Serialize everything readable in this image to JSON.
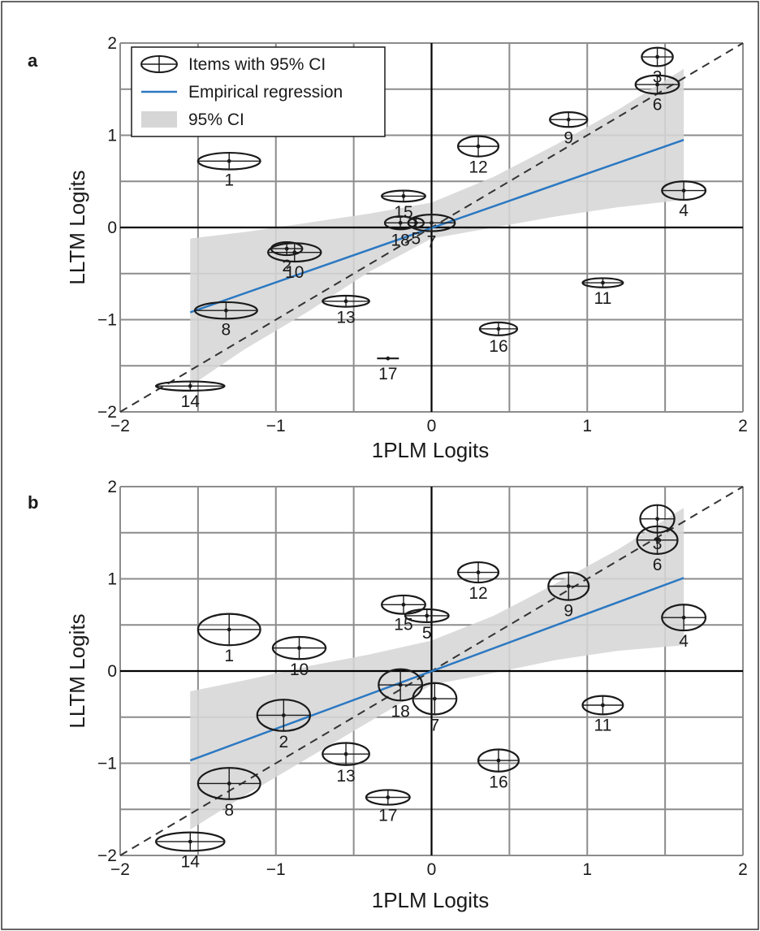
{
  "figure": {
    "border_color": "#333333",
    "colors": {
      "grid": "#8c8c8c",
      "axis": "#000000",
      "identity_line": "#333333",
      "regression": "#2b78c2",
      "ci_band": "#d6d6d6",
      "ellipse": "#1a1a1a"
    }
  },
  "chart_data": [
    {
      "panel_label": "a",
      "type": "scatter",
      "title": "",
      "xlabel": "1PLM Logits",
      "ylabel": "LLTM Logits",
      "xlim": [
        -2,
        2
      ],
      "ylim": [
        -2,
        2
      ],
      "xticks": [
        "−2",
        "−1",
        "0",
        "1",
        "2"
      ],
      "yticks": [
        "−2",
        "−1",
        "0",
        "1",
        "2"
      ],
      "grid": true,
      "minor_gridlines": 0.5,
      "legend": {
        "placement": "top-left",
        "entries": [
          "Items with 95% CI",
          "Empirical regression",
          "95% CI"
        ]
      },
      "identity_line": true,
      "regression": {
        "x": [
          -1.55,
          1.62
        ],
        "y": [
          -0.92,
          0.95
        ]
      },
      "ci_band": {
        "x": [
          -1.55,
          -1.2,
          -0.8,
          -0.4,
          0.0,
          0.4,
          0.8,
          1.2,
          1.62
        ],
        "upper": [
          -0.12,
          -0.05,
          0.05,
          0.15,
          0.27,
          0.55,
          0.9,
          1.28,
          1.72
        ],
        "lower": [
          -1.72,
          -1.32,
          -0.92,
          -0.48,
          -0.12,
          0.0,
          0.12,
          0.22,
          0.3
        ]
      },
      "items": [
        {
          "label": "1",
          "x": -1.3,
          "y": 0.72,
          "ci_x": 0.2,
          "ci_y": 0.09
        },
        {
          "label": "2",
          "x": -0.93,
          "y": -0.23,
          "ci_x": 0.1,
          "ci_y": 0.07
        },
        {
          "label": "3",
          "x": 1.45,
          "y": 1.85,
          "ci_x": 0.1,
          "ci_y": 0.1
        },
        {
          "label": "4",
          "x": 1.62,
          "y": 0.4,
          "ci_x": 0.14,
          "ci_y": 0.1
        },
        {
          "label": "5",
          "x": -0.1,
          "y": 0.05,
          "ci_x": 0.05,
          "ci_y": 0.05
        },
        {
          "label": "6",
          "x": 1.45,
          "y": 1.55,
          "ci_x": 0.14,
          "ci_y": 0.1
        },
        {
          "label": "7",
          "x": 0.0,
          "y": 0.05,
          "ci_x": 0.15,
          "ci_y": 0.09
        },
        {
          "label": "8",
          "x": -1.32,
          "y": -0.9,
          "ci_x": 0.2,
          "ci_y": 0.09
        },
        {
          "label": "9",
          "x": 0.88,
          "y": 1.17,
          "ci_x": 0.12,
          "ci_y": 0.08
        },
        {
          "label": "10",
          "x": -0.88,
          "y": -0.27,
          "ci_x": 0.17,
          "ci_y": 0.1
        },
        {
          "label": "11",
          "x": 1.1,
          "y": -0.6,
          "ci_x": 0.13,
          "ci_y": 0.05
        },
        {
          "label": "12",
          "x": 0.3,
          "y": 0.88,
          "ci_x": 0.13,
          "ci_y": 0.11
        },
        {
          "label": "13",
          "x": -0.55,
          "y": -0.8,
          "ci_x": 0.15,
          "ci_y": 0.06
        },
        {
          "label": "14",
          "x": -1.55,
          "y": -1.72,
          "ci_x": 0.22,
          "ci_y": 0.05
        },
        {
          "label": "15",
          "x": -0.18,
          "y": 0.34,
          "ci_x": 0.14,
          "ci_y": 0.06
        },
        {
          "label": "16",
          "x": 0.43,
          "y": -1.1,
          "ci_x": 0.12,
          "ci_y": 0.07
        },
        {
          "label": "17",
          "x": -0.28,
          "y": -1.42,
          "ci_x": 0.07,
          "ci_y": 0.0
        },
        {
          "label": "18",
          "x": -0.2,
          "y": 0.05,
          "ci_x": 0.1,
          "ci_y": 0.07
        }
      ]
    },
    {
      "panel_label": "b",
      "type": "scatter",
      "title": "",
      "xlabel": "1PLM Logits",
      "ylabel": "LLTM Logits",
      "xlim": [
        -2,
        2
      ],
      "ylim": [
        -2,
        2
      ],
      "xticks": [
        "−2",
        "−1",
        "0",
        "1",
        "2"
      ],
      "yticks": [
        "−2",
        "−1",
        "0",
        "1",
        "2"
      ],
      "grid": true,
      "minor_gridlines": 0.5,
      "identity_line": true,
      "regression": {
        "x": [
          -1.55,
          1.62
        ],
        "y": [
          -0.97,
          1.01
        ]
      },
      "ci_band": {
        "x": [
          -1.55,
          -1.2,
          -0.8,
          -0.4,
          0.0,
          0.4,
          0.8,
          1.2,
          1.62
        ],
        "upper": [
          -0.22,
          -0.1,
          0.05,
          0.18,
          0.33,
          0.6,
          0.95,
          1.32,
          1.77
        ],
        "lower": [
          -1.72,
          -1.35,
          -0.95,
          -0.55,
          -0.15,
          -0.02,
          0.12,
          0.22,
          0.28
        ]
      },
      "items": [
        {
          "label": "1",
          "x": -1.3,
          "y": 0.45,
          "ci_x": 0.2,
          "ci_y": 0.17
        },
        {
          "label": "2",
          "x": -0.95,
          "y": -0.48,
          "ci_x": 0.17,
          "ci_y": 0.17
        },
        {
          "label": "3",
          "x": 1.45,
          "y": 1.65,
          "ci_x": 0.11,
          "ci_y": 0.15
        },
        {
          "label": "4",
          "x": 1.62,
          "y": 0.58,
          "ci_x": 0.14,
          "ci_y": 0.14
        },
        {
          "label": "5",
          "x": -0.03,
          "y": 0.6,
          "ci_x": 0.14,
          "ci_y": 0.07
        },
        {
          "label": "6",
          "x": 1.45,
          "y": 1.42,
          "ci_x": 0.13,
          "ci_y": 0.15
        },
        {
          "label": "7",
          "x": 0.02,
          "y": -0.3,
          "ci_x": 0.14,
          "ci_y": 0.17
        },
        {
          "label": "8",
          "x": -1.3,
          "y": -1.22,
          "ci_x": 0.2,
          "ci_y": 0.17
        },
        {
          "label": "9",
          "x": 0.88,
          "y": 0.92,
          "ci_x": 0.13,
          "ci_y": 0.15
        },
        {
          "label": "10",
          "x": -0.85,
          "y": 0.25,
          "ci_x": 0.17,
          "ci_y": 0.12
        },
        {
          "label": "11",
          "x": 1.1,
          "y": -0.37,
          "ci_x": 0.13,
          "ci_y": 0.1
        },
        {
          "label": "12",
          "x": 0.3,
          "y": 1.07,
          "ci_x": 0.13,
          "ci_y": 0.11
        },
        {
          "label": "13",
          "x": -0.55,
          "y": -0.9,
          "ci_x": 0.15,
          "ci_y": 0.12
        },
        {
          "label": "14",
          "x": -1.55,
          "y": -1.85,
          "ci_x": 0.22,
          "ci_y": 0.1
        },
        {
          "label": "15",
          "x": -0.18,
          "y": 0.72,
          "ci_x": 0.14,
          "ci_y": 0.1
        },
        {
          "label": "16",
          "x": 0.43,
          "y": -0.97,
          "ci_x": 0.13,
          "ci_y": 0.12
        },
        {
          "label": "17",
          "x": -0.28,
          "y": -1.37,
          "ci_x": 0.14,
          "ci_y": 0.08
        },
        {
          "label": "18",
          "x": -0.2,
          "y": -0.15,
          "ci_x": 0.14,
          "ci_y": 0.17
        }
      ]
    }
  ]
}
